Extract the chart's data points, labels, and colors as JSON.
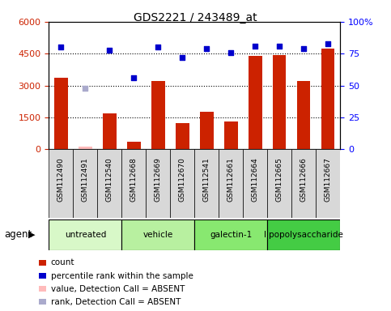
{
  "title": "GDS2221 / 243489_at",
  "samples": [
    "GSM112490",
    "GSM112491",
    "GSM112540",
    "GSM112668",
    "GSM112669",
    "GSM112670",
    "GSM112541",
    "GSM112661",
    "GSM112664",
    "GSM112665",
    "GSM112666",
    "GSM112667"
  ],
  "bar_values": [
    3350,
    120,
    1700,
    350,
    3200,
    1250,
    1750,
    1320,
    4400,
    4450,
    3200,
    4750
  ],
  "bar_absent": [
    false,
    true,
    false,
    false,
    false,
    false,
    false,
    false,
    false,
    false,
    false,
    false
  ],
  "percentile_values": [
    80,
    null,
    78,
    56,
    80,
    72,
    79,
    76,
    81,
    81,
    79,
    83
  ],
  "percentile_absent_val": 48,
  "percentile_absent_idx": 1,
  "ylim_left": [
    0,
    6000
  ],
  "ylim_right": [
    0,
    100
  ],
  "yticks_left": [
    0,
    1500,
    3000,
    4500,
    6000
  ],
  "yticks_left_labels": [
    "0",
    "1500",
    "3000",
    "4500",
    "6000"
  ],
  "yticks_right": [
    0,
    25,
    50,
    75,
    100
  ],
  "yticks_right_labels": [
    "0",
    "25",
    "50",
    "75",
    "100%"
  ],
  "agents": [
    {
      "label": "untreated",
      "start": 0,
      "end": 3,
      "color": "#d8f8c8"
    },
    {
      "label": "vehicle",
      "start": 3,
      "end": 6,
      "color": "#b8f0a0"
    },
    {
      "label": "galectin-1",
      "start": 6,
      "end": 9,
      "color": "#88e870"
    },
    {
      "label": "lipopolysaccharide",
      "start": 9,
      "end": 12,
      "color": "#44cc44"
    }
  ],
  "bar_color_normal": "#cc2200",
  "bar_color_absent": "#ffbbbb",
  "dot_color_normal": "#0000cc",
  "dot_color_absent": "#aaaacc",
  "legend_items": [
    {
      "color": "#cc2200",
      "label": "count"
    },
    {
      "color": "#0000cc",
      "label": "percentile rank within the sample"
    },
    {
      "color": "#ffbbbb",
      "label": "value, Detection Call = ABSENT"
    },
    {
      "color": "#aaaacc",
      "label": "rank, Detection Call = ABSENT"
    }
  ],
  "agent_label": "agent",
  "bar_width": 0.55
}
